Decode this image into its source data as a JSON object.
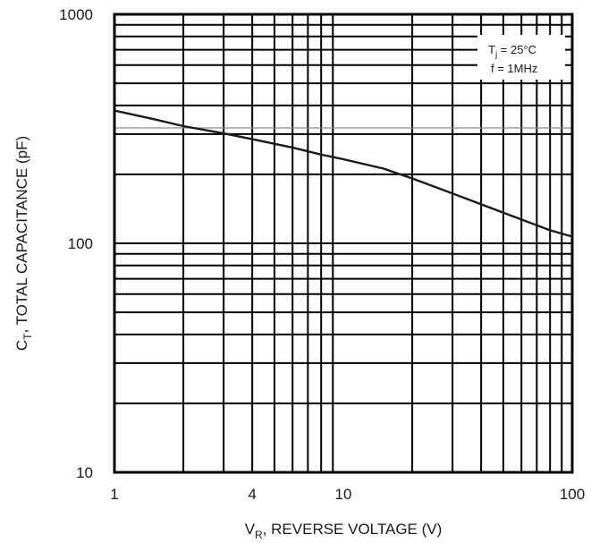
{
  "chart_data": {
    "type": "line",
    "x_scale": "log",
    "y_scale": "log",
    "xlim": [
      1,
      100
    ],
    "ylim": [
      10,
      1000
    ],
    "grid": true,
    "x_ticks": [
      {
        "value": 1,
        "label": "1"
      },
      {
        "value": 4,
        "label": "4"
      },
      {
        "value": 10,
        "label": "10"
      },
      {
        "value": 100,
        "label": "100"
      }
    ],
    "y_ticks": [
      {
        "value": 10,
        "label": "10"
      },
      {
        "value": 100,
        "label": "100"
      },
      {
        "value": 1000,
        "label": "1000"
      }
    ],
    "xlabel": {
      "main": "V",
      "sub": "R",
      "rest": ", REVERSE VOLTAGE (V)"
    },
    "ylabel": {
      "main": "C",
      "sub": "T",
      "rest": ", TOTAL CAPACITANCE (pF)"
    },
    "annotation": {
      "line1": {
        "main": "T",
        "sub": "j",
        "rest": " = 25°C"
      },
      "line2": "f = 1MHz",
      "placement": "top-right"
    },
    "series": [
      {
        "x": [
          1,
          1.5,
          2,
          3,
          4,
          6,
          8,
          10,
          15,
          20,
          30,
          40,
          60,
          80,
          100
        ],
        "y": [
          380,
          348,
          325,
          302,
          285,
          262,
          244,
          233,
          212,
          192,
          165,
          148,
          127,
          114,
          107
        ]
      }
    ]
  }
}
